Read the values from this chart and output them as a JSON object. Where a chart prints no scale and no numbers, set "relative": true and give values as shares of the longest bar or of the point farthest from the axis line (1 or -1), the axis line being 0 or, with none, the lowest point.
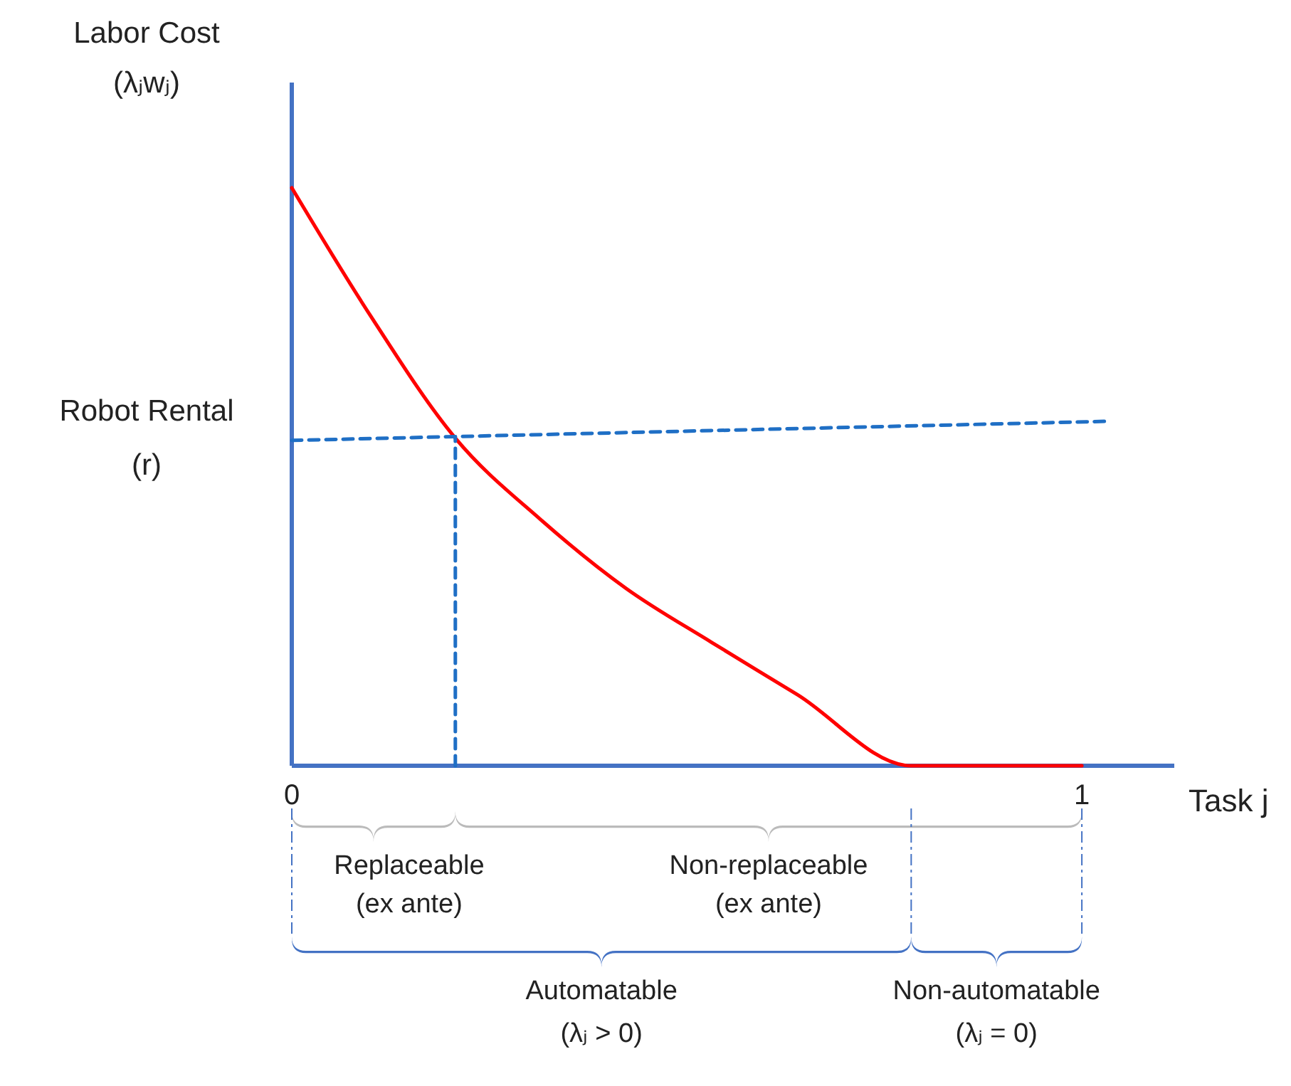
{
  "chart_data": {
    "type": "line",
    "relative": true,
    "xlabel": "Task j",
    "ylabel": "Labor Cost\n(λⱼwⱼ)",
    "xlim": [
      0,
      1.117
    ],
    "xticks": [
      0,
      1
    ],
    "tick_labels": "x",
    "series": [
      {
        "color": "#ff0000",
        "line_style": "solid",
        "x": [
          0,
          0.099,
          0.207,
          0.315,
          0.423,
          0.532,
          0.64,
          0.784,
          1
        ],
        "values": [
          1,
          0.78,
          0.567,
          0.426,
          0.307,
          0.213,
          0.123,
          0,
          0
        ]
      },
      {
        "color": "#1f6fc5",
        "line_style": "dashed",
        "x": [
          0,
          1.031
        ],
        "values": [
          0.563,
          0.596
        ]
      },
      {
        "color": "#1f6fc5",
        "line_style": "dashed",
        "x": [
          0.207,
          0.207
        ],
        "values": [
          0,
          0.567
        ]
      }
    ],
    "annotations": [
      "Robot Rental\n(r)",
      "Replaceable\n(ex ante)",
      "Non-replaceable\n(ex ante)",
      "Automatable\n(λⱼ > 0)",
      "Non-automatable\n(λⱼ = 0)"
    ]
  }
}
